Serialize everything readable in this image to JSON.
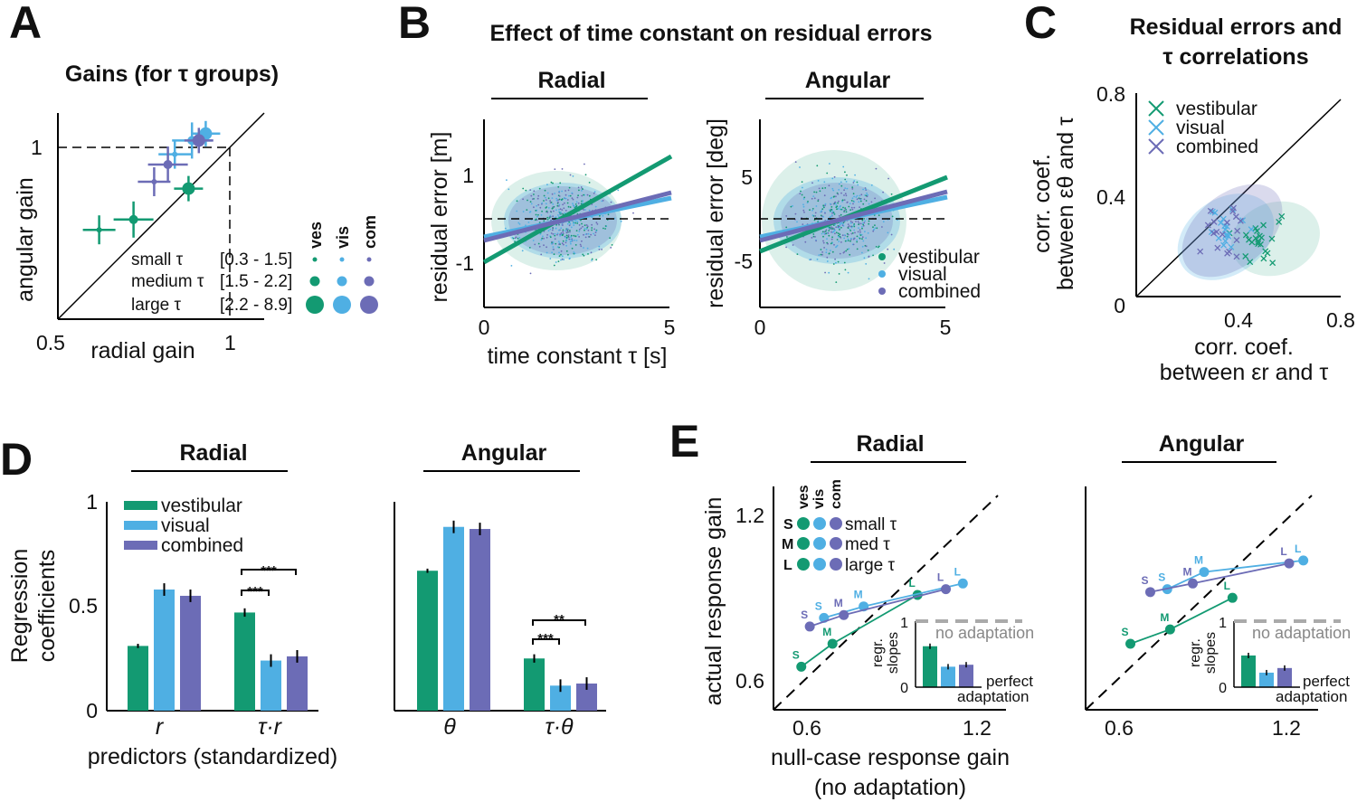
{
  "colors": {
    "vestibular": "#139a72",
    "visual": "#4fafe3",
    "combined": "#6c6cb6",
    "gray": "#aaaaaa"
  },
  "panel_labels": [
    "A",
    "B",
    "C",
    "D",
    "E"
  ],
  "groups": {
    "vestibular": "vestibular",
    "visual": "visual",
    "combined": "combined"
  },
  "A": {
    "title": "Gains (for τ groups)",
    "xlabel": "radial gain",
    "ylabel": "angular gain",
    "x_ticks": [
      "0.5",
      "1"
    ],
    "y_ticks": [
      "1"
    ],
    "col_heads": [
      "ves",
      "vis",
      "com"
    ],
    "rows": [
      {
        "label": "small τ",
        "range": "[0.3 - 1.5]"
      },
      {
        "label": "medium τ",
        "range": "[1.5 - 2.2]"
      },
      {
        "label": "large τ",
        "range": "[2.2 - 8.9]"
      }
    ]
  },
  "B": {
    "title": "Effect of time constant on residual errors",
    "sub_radial": "Radial",
    "sub_angular": "Angular",
    "radial_ylabel": "residual error [m]",
    "angular_ylabel": "residual error [deg]",
    "xlabel": "time constant τ [s]",
    "radial_yticks": [
      "1",
      "-1"
    ],
    "angular_yticks": [
      "5",
      "-5"
    ],
    "xticks": [
      "0",
      "5"
    ]
  },
  "C": {
    "title_line1": "Residual errors and",
    "title_line2": "τ correlations",
    "xlabel_line1": "corr. coef.",
    "xlabel_line2": "between εr and τ",
    "ylabel_line1": "corr. coef.",
    "ylabel_line2": "between εθ and τ",
    "ticks": [
      "0",
      "0.4",
      "0.8"
    ]
  },
  "D": {
    "ylabel_line1": "Regression",
    "ylabel_line2": "coefficients",
    "yticks": [
      "0",
      "0.5",
      "1"
    ],
    "radial_title": "Radial",
    "angular_title": "Angular",
    "radial_predictors": [
      "r",
      "τ·r"
    ],
    "angular_predictors": [
      "θ",
      "τ·θ"
    ],
    "xlabel": "predictors (standardized)",
    "sig_radial": [
      "***",
      "***"
    ],
    "sig_angular": [
      "***",
      "**"
    ]
  },
  "E": {
    "radial_title": "Radial",
    "angular_title": "Angular",
    "ylabel": "actual response gain",
    "xlabel_line1": "null-case response gain",
    "xlabel_line2": "(no adaptation)",
    "yticks": [
      "1.2",
      "0.6"
    ],
    "xticks": [
      "0.6",
      "1.2"
    ],
    "col_heads": [
      "ves",
      "vis",
      "com"
    ],
    "rows": [
      {
        "key": "S",
        "label": "small τ"
      },
      {
        "key": "M",
        "label": "med τ"
      },
      {
        "key": "L",
        "label": "large τ"
      }
    ],
    "inset_ylabel_line1": "regr.",
    "inset_ylabel_line2": "slopes",
    "inset_ticks": [
      "1",
      "0"
    ],
    "no_adaptation": "no adaptation",
    "perfect_line1": "perfect",
    "perfect_line2": "adaptation"
  },
  "chart_data": [
    {
      "type": "scatter",
      "panel": "A",
      "title": "Gains (for τ groups)",
      "xlabel": "radial gain",
      "ylabel": "angular gain",
      "series": [
        {
          "name": "vestibular",
          "points": [
            [
              0.62,
              0.76
            ],
            [
              0.72,
              0.79
            ],
            [
              0.88,
              0.88
            ]
          ]
        },
        {
          "name": "visual",
          "points": [
            [
              0.84,
              0.98
            ],
            [
              0.89,
              1.02
            ],
            [
              0.93,
              1.04
            ]
          ]
        },
        {
          "name": "combined",
          "points": [
            [
              0.78,
              0.9
            ],
            [
              0.82,
              0.95
            ],
            [
              0.91,
              1.02
            ]
          ]
        }
      ]
    },
    {
      "type": "bar",
      "panel": "D-radial",
      "categories": [
        "r",
        "τ·r"
      ],
      "series": [
        {
          "name": "vestibular",
          "values": [
            0.31,
            0.47
          ]
        },
        {
          "name": "visual",
          "values": [
            0.58,
            0.24
          ]
        },
        {
          "name": "combined",
          "values": [
            0.55,
            0.26
          ]
        }
      ],
      "ylim": [
        0,
        1
      ]
    },
    {
      "type": "bar",
      "panel": "D-angular",
      "categories": [
        "θ",
        "τ·θ"
      ],
      "series": [
        {
          "name": "vestibular",
          "values": [
            0.67,
            0.25
          ]
        },
        {
          "name": "visual",
          "values": [
            0.88,
            0.12
          ]
        },
        {
          "name": "combined",
          "values": [
            0.87,
            0.13
          ]
        }
      ],
      "ylim": [
        0,
        1
      ]
    },
    {
      "type": "line",
      "panel": "E-radial",
      "xlabel": "null-case response gain",
      "ylabel": "actual response gain",
      "series": [
        {
          "name": "vestibular",
          "points": [
            [
              0.58,
              0.65
            ],
            [
              0.69,
              0.73
            ],
            [
              0.99,
              0.9
            ]
          ]
        },
        {
          "name": "visual",
          "points": [
            [
              0.66,
              0.82
            ],
            [
              0.8,
              0.86
            ],
            [
              1.15,
              0.94
            ]
          ]
        },
        {
          "name": "combined",
          "points": [
            [
              0.61,
              0.79
            ],
            [
              0.73,
              0.83
            ],
            [
              1.09,
              0.92
            ]
          ]
        }
      ]
    },
    {
      "type": "line",
      "panel": "E-angular",
      "xlabel": "null-case response gain",
      "ylabel": "actual response gain",
      "series": [
        {
          "name": "vestibular",
          "points": [
            [
              0.64,
              0.73
            ],
            [
              0.78,
              0.78
            ],
            [
              1.0,
              0.89
            ]
          ]
        },
        {
          "name": "visual",
          "points": [
            [
              0.77,
              0.92
            ],
            [
              0.9,
              0.98
            ],
            [
              1.25,
              1.02
            ]
          ]
        },
        {
          "name": "combined",
          "points": [
            [
              0.71,
              0.91
            ],
            [
              0.86,
              0.94
            ],
            [
              1.2,
              1.01
            ]
          ]
        }
      ]
    },
    {
      "type": "bar",
      "panel": "E-inset-radial",
      "series": [
        {
          "name": "vestibular",
          "values": [
            0.62
          ]
        },
        {
          "name": "visual",
          "values": [
            0.31
          ]
        },
        {
          "name": "combined",
          "values": [
            0.34
          ]
        }
      ],
      "ylim": [
        0,
        1
      ]
    },
    {
      "type": "bar",
      "panel": "E-inset-angular",
      "series": [
        {
          "name": "vestibular",
          "values": [
            0.48
          ]
        },
        {
          "name": "visual",
          "values": [
            0.22
          ]
        },
        {
          "name": "combined",
          "values": [
            0.29
          ]
        }
      ],
      "ylim": [
        0,
        1
      ]
    }
  ]
}
